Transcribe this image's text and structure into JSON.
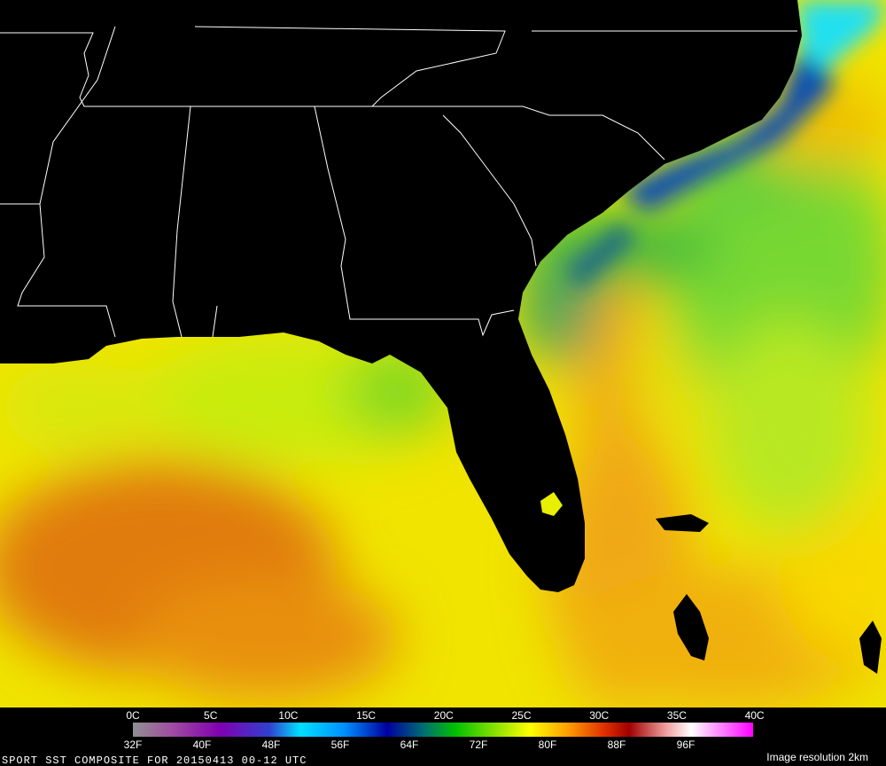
{
  "legend": {
    "celsius": [
      "0C",
      "5C",
      "10C",
      "15C",
      "20C",
      "25C",
      "30C",
      "35C",
      "40C"
    ],
    "fahrenheit": [
      "32F",
      "40F",
      "48F",
      "56F",
      "64F",
      "72F",
      "80F",
      "88F",
      "96F"
    ]
  },
  "caption": "SPORT SST COMPOSITE FOR 20150413 00-12 UTC",
  "resolution": "Image resolution 2km"
}
